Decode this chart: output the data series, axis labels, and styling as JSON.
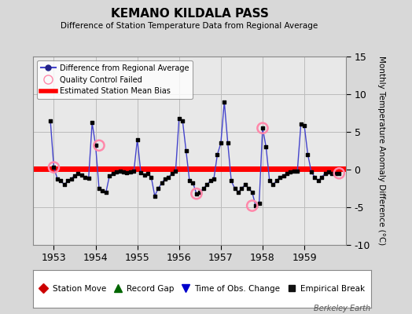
{
  "title": "KEMANO KILDALA PASS",
  "subtitle": "Difference of Station Temperature Data from Regional Average",
  "ylabel": "Monthly Temperature Anomaly Difference (°C)",
  "xlabel_years": [
    1953,
    1954,
    1955,
    1956,
    1957,
    1958,
    1959
  ],
  "ylim": [
    -10,
    15
  ],
  "background_color": "#d8d8d8",
  "plot_background": "#e8e8e8",
  "line_color": "#4444cc",
  "dot_color": "#000000",
  "bias_color": "#ff0000",
  "bias_value": 0.15,
  "qc_fill": "none",
  "qc_edge_color": "#ff88aa",
  "watermark": "Berkeley Earth",
  "grid_color": "#bbbbbb",
  "times": [
    1952.917,
    1953.083,
    1953.25,
    1953.417,
    1953.583,
    1953.75,
    1953.917,
    1954.083,
    1954.25,
    1954.417,
    1954.583,
    1954.75,
    1954.917,
    1955.083,
    1955.25,
    1955.417,
    1955.583,
    1955.75,
    1955.917,
    1956.083,
    1956.25,
    1956.417,
    1956.583,
    1956.75,
    1956.917,
    1957.083,
    1957.25,
    1957.417,
    1957.583,
    1957.75,
    1957.917,
    1958.083,
    1958.25,
    1958.417,
    1958.583,
    1958.75,
    1958.917,
    1959.083,
    1959.25,
    1959.417,
    1959.583,
    1959.75
  ],
  "values": [
    6.5,
    -1.2,
    -2.0,
    -1.5,
    -0.5,
    -1.0,
    6.2,
    3.2,
    -2.5,
    -0.5,
    -0.3,
    -0.4,
    -0.3,
    4.0,
    -0.5,
    -3.5,
    -1.8,
    -1.0,
    -0.3,
    6.8,
    6.5,
    -1.8,
    -3.2,
    -1.5,
    2.0,
    3.5,
    9.0,
    3.5,
    -2.5,
    -4.8,
    -4.5,
    5.5,
    -2.0,
    -1.5,
    -0.5,
    -0.3,
    6.0,
    5.8,
    2.0,
    -1.0,
    -0.5,
    -0.5
  ],
  "all_times": [
    1952.917,
    1953.0,
    1953.083,
    1953.167,
    1953.25,
    1953.333,
    1953.417,
    1953.5,
    1953.583,
    1953.667,
    1953.75,
    1953.833,
    1953.917,
    1954.0,
    1954.083,
    1954.167,
    1954.25,
    1954.333,
    1954.417,
    1954.5,
    1954.583,
    1954.667,
    1954.75,
    1954.833,
    1954.917,
    1955.0,
    1955.083,
    1955.167,
    1955.25,
    1955.333,
    1955.417,
    1955.5,
    1955.583,
    1955.667,
    1955.75,
    1955.833,
    1955.917,
    1956.0,
    1956.083,
    1956.167,
    1956.25,
    1956.333,
    1956.417,
    1956.5,
    1956.583,
    1956.667,
    1956.75,
    1956.833,
    1956.917,
    1957.0,
    1957.083,
    1957.167,
    1957.25,
    1957.333,
    1957.417,
    1957.5,
    1957.583,
    1957.667,
    1957.75,
    1957.833,
    1957.917,
    1958.0,
    1958.083,
    1958.167,
    1958.25,
    1958.333,
    1958.417,
    1958.5,
    1958.583,
    1958.667,
    1958.75,
    1958.833,
    1958.917,
    1959.0,
    1959.083,
    1959.167,
    1959.25,
    1959.333,
    1959.417,
    1959.5,
    1959.583,
    1959.667,
    1959.75,
    1959.833
  ],
  "all_values": [
    6.5,
    0.3,
    -1.2,
    -1.5,
    -2.0,
    -1.5,
    -1.2,
    -0.8,
    -0.5,
    -0.7,
    -1.0,
    -1.1,
    6.2,
    3.2,
    -2.5,
    -2.8,
    -3.0,
    -0.8,
    -0.5,
    -0.3,
    -0.2,
    -0.3,
    -0.4,
    -0.3,
    -0.2,
    4.0,
    -0.4,
    -0.7,
    -0.5,
    -1.0,
    -3.5,
    -2.5,
    -1.8,
    -1.2,
    -1.0,
    -0.5,
    -0.2,
    6.8,
    6.5,
    2.5,
    -1.5,
    -1.8,
    -3.2,
    -3.0,
    -2.5,
    -2.0,
    -1.5,
    -1.2,
    2.0,
    3.5,
    9.0,
    3.5,
    -1.5,
    -2.5,
    -3.0,
    -2.5,
    -2.0,
    -2.5,
    -3.0,
    -4.8,
    -4.5,
    5.5,
    3.0,
    -1.5,
    -2.0,
    -1.5,
    -1.0,
    -0.8,
    -0.5,
    -0.3,
    -0.2,
    -0.2,
    6.0,
    5.8,
    2.0,
    -0.3,
    -1.0,
    -1.5,
    -1.0,
    -0.5,
    -0.3,
    -0.5,
    -0.5,
    -0.5
  ],
  "qc_failed_times": [
    1953.0,
    1954.083,
    1956.417,
    1957.75,
    1958.0,
    1959.833
  ],
  "qc_failed_values": [
    0.3,
    3.2,
    -3.2,
    -4.8,
    5.5,
    -0.5
  ]
}
